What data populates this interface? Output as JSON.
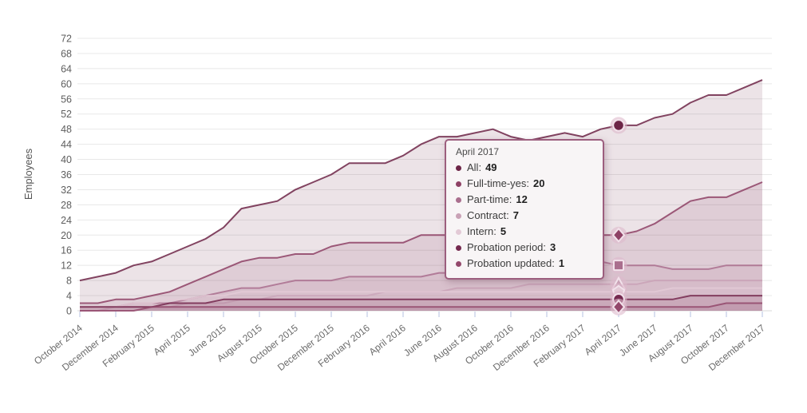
{
  "chart_data": {
    "type": "area",
    "title": "",
    "xlabel": "",
    "ylabel": "Employees",
    "ylim": [
      0,
      72
    ],
    "y_ticks": [
      0,
      4,
      8,
      12,
      16,
      20,
      24,
      28,
      32,
      36,
      40,
      44,
      48,
      52,
      56,
      60,
      64,
      68,
      72
    ],
    "grid": "horizontal",
    "legend_position": "none",
    "x_months_total": 39,
    "x_tick_every": 2,
    "x_tick_labels": [
      "October 2014",
      "December 2014",
      "February 2015",
      "April 2015",
      "June 2015",
      "August 2015",
      "October 2015",
      "December 2015",
      "February 2016",
      "April 2016",
      "June 2016",
      "August 2016",
      "October 2016",
      "December 2016",
      "February 2017",
      "April 2017",
      "June 2017",
      "August 2017",
      "October 2017",
      "December 2017"
    ],
    "series": [
      {
        "name": "All",
        "color": "#6d2547",
        "marker": "circle",
        "values": [
          8,
          9,
          10,
          12,
          13,
          15,
          17,
          19,
          22,
          27,
          28,
          29,
          32,
          34,
          36,
          39,
          39,
          39,
          41,
          44,
          46,
          46,
          47,
          48,
          46,
          45,
          46,
          47,
          46,
          48,
          49,
          49,
          51,
          52,
          55,
          57,
          57,
          59,
          61
        ]
      },
      {
        "name": "Full-time-yes",
        "color": "#8e4165",
        "marker": "diamond",
        "values": [
          2,
          2,
          3,
          3,
          4,
          5,
          7,
          9,
          11,
          13,
          14,
          14,
          15,
          15,
          17,
          18,
          18,
          18,
          18,
          20,
          20,
          20,
          20,
          20,
          20,
          20,
          20,
          20,
          20,
          20,
          20,
          21,
          23,
          26,
          29,
          30,
          30,
          32,
          34
        ]
      },
      {
        "name": "Part-time",
        "color": "#aa6f8e",
        "marker": "square",
        "values": [
          1,
          1,
          1,
          2,
          2,
          2,
          3,
          4,
          5,
          6,
          6,
          7,
          8,
          8,
          8,
          9,
          9,
          9,
          9,
          9,
          10,
          10,
          11,
          11,
          12,
          13,
          13,
          13,
          13,
          13,
          12,
          12,
          12,
          11,
          11,
          11,
          12,
          12,
          12
        ]
      },
      {
        "name": "Contract",
        "color": "#c9a2b6",
        "marker": "triangle",
        "values": [
          0,
          0,
          1,
          1,
          1,
          1,
          2,
          2,
          2,
          3,
          3,
          4,
          4,
          4,
          4,
          4,
          4,
          5,
          5,
          5,
          5,
          6,
          6,
          6,
          6,
          7,
          7,
          7,
          7,
          7,
          7,
          7,
          8,
          8,
          8,
          8,
          8,
          8,
          8
        ]
      },
      {
        "name": "Intern",
        "color": "#e3cad6",
        "marker": "pentagon",
        "values": [
          1,
          1,
          1,
          2,
          2,
          3,
          3,
          4,
          4,
          5,
          5,
          5,
          5,
          5,
          5,
          5,
          5,
          5,
          5,
          5,
          5,
          5,
          5,
          5,
          5,
          5,
          5,
          5,
          5,
          5,
          5,
          5,
          5,
          6,
          6,
          6,
          6,
          6,
          6
        ]
      },
      {
        "name": "Probation period",
        "color": "#75294f",
        "marker": "circle",
        "values": [
          1,
          1,
          1,
          1,
          1,
          2,
          2,
          2,
          3,
          3,
          3,
          3,
          3,
          3,
          3,
          3,
          3,
          3,
          3,
          3,
          3,
          3,
          3,
          3,
          3,
          3,
          3,
          3,
          3,
          3,
          3,
          3,
          3,
          3,
          4,
          4,
          4,
          4,
          4
        ]
      },
      {
        "name": "Probation updated",
        "color": "#93486b",
        "marker": "diamond",
        "values": [
          0,
          0,
          0,
          0,
          1,
          1,
          1,
          1,
          1,
          1,
          1,
          1,
          1,
          1,
          1,
          1,
          1,
          1,
          1,
          1,
          1,
          1,
          1,
          1,
          1,
          1,
          1,
          1,
          1,
          1,
          1,
          1,
          1,
          1,
          1,
          1,
          2,
          2,
          2
        ]
      }
    ]
  },
  "tooltip": {
    "title": "April 2017",
    "month_index": 30,
    "items": [
      {
        "label": "All",
        "value": "49",
        "color": "#6d2547"
      },
      {
        "label": "Full-time-yes",
        "value": "20",
        "color": "#8e4165"
      },
      {
        "label": "Part-time",
        "value": "12",
        "color": "#aa6f8e"
      },
      {
        "label": "Contract",
        "value": "7",
        "color": "#c9a2b6"
      },
      {
        "label": "Intern",
        "value": "5",
        "color": "#e3cad6"
      },
      {
        "label": "Probation period",
        "value": "3",
        "color": "#75294f"
      },
      {
        "label": "Probation updated",
        "value": "1",
        "color": "#93486b"
      }
    ]
  },
  "style": {
    "grid_color": "#e8e8e8",
    "baseline_color": "#d9d9d9",
    "x_tick_mark_color": "#c7cfe8",
    "halo_color": "#ddb9cb",
    "marker_edge_color": "#f2e2eb",
    "fill_opacity": 0.13,
    "stroke_opacity": 0.85
  }
}
